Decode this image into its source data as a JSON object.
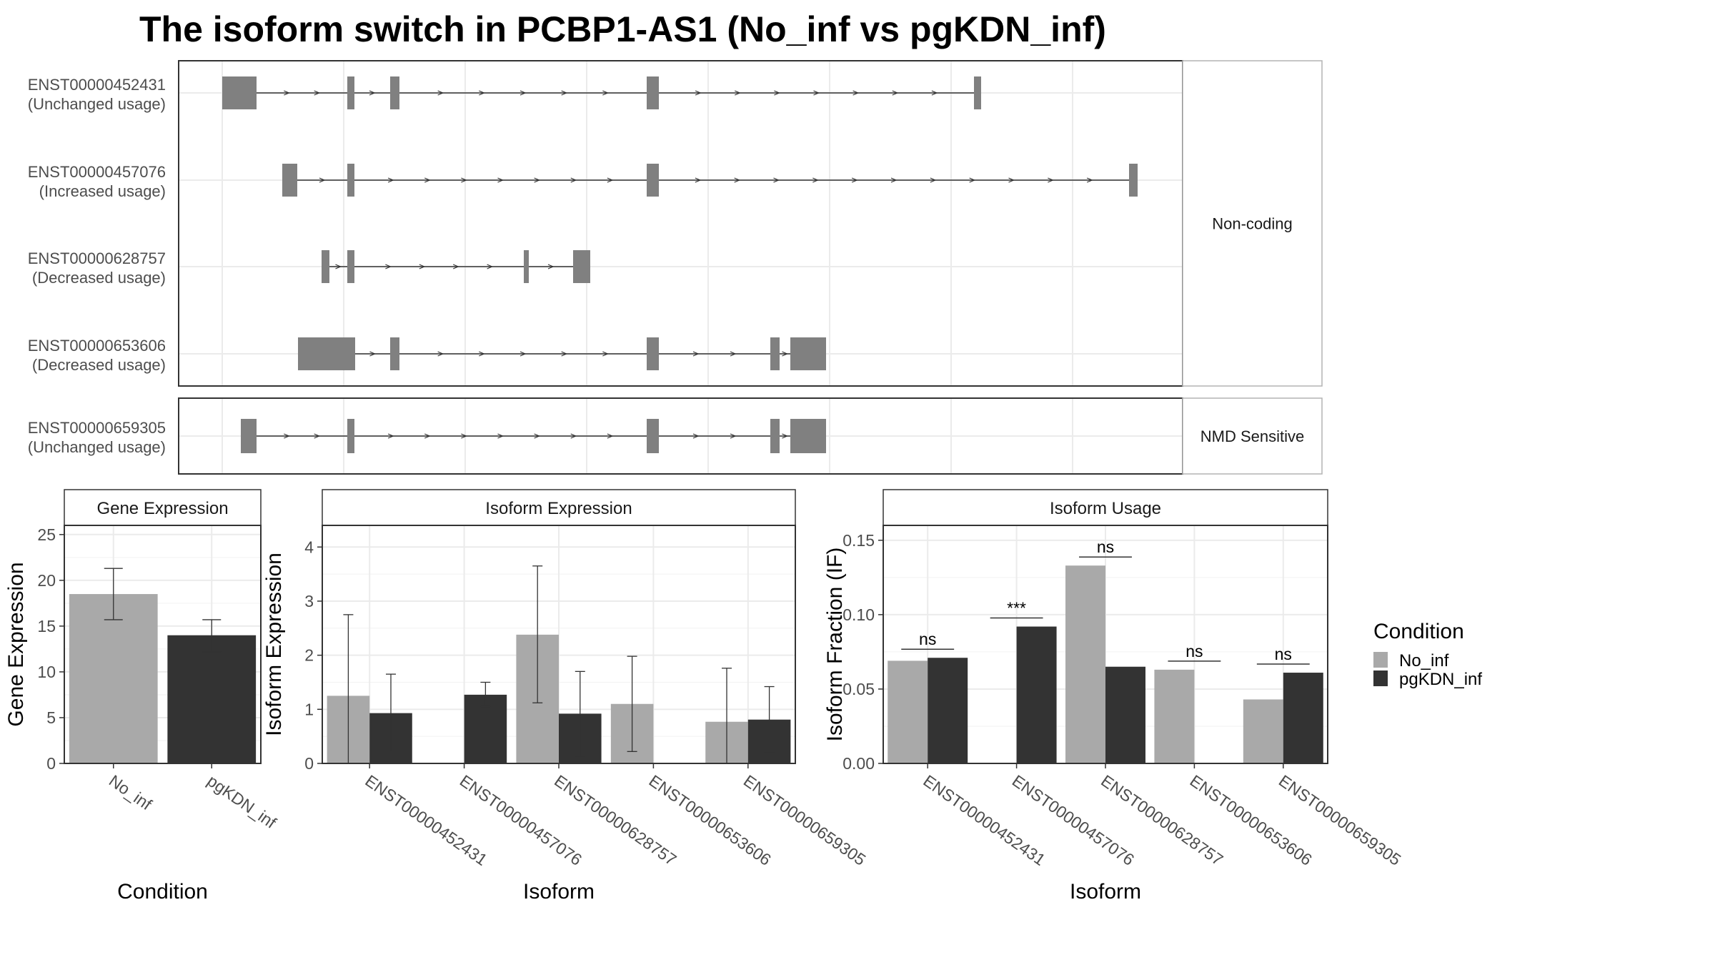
{
  "title": "The isoform switch in PCBP1-AS1 (No_inf vs pgKDN_inf)",
  "colors": {
    "no_inf": "#a9a9a9",
    "pgkdn_inf": "#333333",
    "exon": "#808080",
    "strip_bg": "#ffffff",
    "grid": "#ebebeb",
    "panel_border": "#333333",
    "strip_border": "#b3b3b3"
  },
  "structure": {
    "transcripts": [
      {
        "id": "ENST00000452431",
        "usage": "(Unchanged usage)",
        "group": "Non-coding"
      },
      {
        "id": "ENST00000457076",
        "usage": "(Increased usage)",
        "group": "Non-coding"
      },
      {
        "id": "ENST00000628757",
        "usage": "(Decreased usage)",
        "group": "Non-coding"
      },
      {
        "id": "ENST00000653606",
        "usage": "(Decreased usage)",
        "group": "Non-coding"
      },
      {
        "id": "ENST00000659305",
        "usage": "(Unchanged usage)",
        "group": "NMD Sensitive"
      }
    ],
    "groups": [
      "Non-coding",
      "NMD Sensitive"
    ]
  },
  "chart_data": [
    {
      "type": "bar",
      "strip": "Gene Expression",
      "xlabel": "Condition",
      "ylabel": "Gene Expression",
      "categories": [
        "No_inf",
        "pgKDN_inf"
      ],
      "values": [
        18.5,
        14.0
      ],
      "errors": [
        [
          15.7,
          21.3
        ],
        [
          12.2,
          15.7
        ]
      ],
      "ylim": [
        0,
        26
      ],
      "yticks": [
        "0",
        "5",
        "10",
        "15",
        "20",
        "25"
      ]
    },
    {
      "type": "bar",
      "strip": "Isoform Expression",
      "xlabel": "Isoform",
      "ylabel": "Isoform Expression",
      "categories": [
        "ENST00000452431",
        "ENST00000457076",
        "ENST00000628757",
        "ENST00000653606",
        "ENST00000659305"
      ],
      "series": [
        {
          "name": "No_inf",
          "values": [
            1.25,
            0.0,
            2.38,
            1.1,
            0.77
          ],
          "errors": [
            [
              0.0,
              2.75
            ],
            [
              0.0,
              0.0
            ],
            [
              1.12,
              3.65
            ],
            [
              0.22,
              1.98
            ],
            [
              0.0,
              1.76
            ]
          ]
        },
        {
          "name": "pgKDN_inf",
          "values": [
            0.93,
            1.27,
            0.92,
            0.0,
            0.81
          ],
          "errors": [
            [
              0.22,
              1.65
            ],
            [
              1.05,
              1.5
            ],
            [
              0.14,
              1.7
            ],
            [
              0.0,
              0.0
            ],
            [
              0.2,
              1.42
            ]
          ]
        }
      ],
      "ylim": [
        0,
        4.4
      ],
      "yticks": [
        "0",
        "1",
        "2",
        "3",
        "4"
      ]
    },
    {
      "type": "bar",
      "strip": "Isoform Usage",
      "xlabel": "Isoform",
      "ylabel": "Isoform Fraction (IF)",
      "categories": [
        "ENST00000452431",
        "ENST00000457076",
        "ENST00000628757",
        "ENST00000653606",
        "ENST00000659305"
      ],
      "series": [
        {
          "name": "No_inf",
          "values": [
            0.069,
            0.0,
            0.133,
            0.063,
            0.043
          ]
        },
        {
          "name": "pgKDN_inf",
          "values": [
            0.071,
            0.092,
            0.065,
            0.0,
            0.061
          ]
        }
      ],
      "significance": [
        "ns",
        "***",
        "ns",
        "ns",
        "ns"
      ],
      "ylim": [
        0,
        0.16
      ],
      "yticks": [
        "0.00",
        "0.05",
        "0.10",
        "0.15"
      ]
    }
  ],
  "legend": {
    "title": "Condition",
    "items": [
      "No_inf",
      "pgKDN_inf"
    ]
  }
}
